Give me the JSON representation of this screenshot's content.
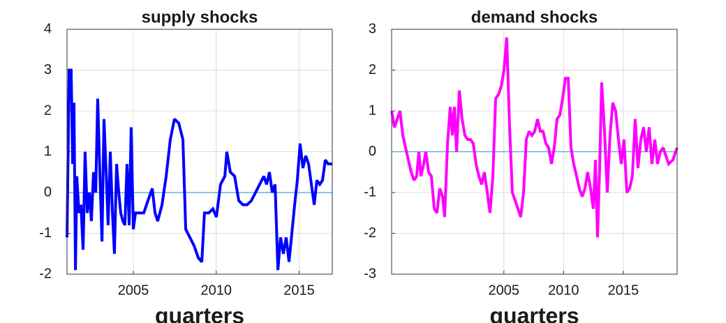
{
  "chart_data": [
    {
      "type": "line",
      "title": "supply shocks",
      "x_label": "quarters",
      "xlim": [
        2001,
        2017
      ],
      "xticks": [
        2005,
        2010,
        2015
      ],
      "ylim": [
        -2,
        4
      ],
      "yticks": [
        -2,
        -1,
        0,
        1,
        2,
        3,
        4
      ],
      "grid": true,
      "hline": 0,
      "hline_color": "#4aa3d8",
      "series": [
        {
          "name": "supply shocks",
          "color": "#0000ff",
          "x": [
            2001.0,
            2001.13,
            2001.25,
            2001.34,
            2001.42,
            2001.51,
            2001.59,
            2001.72,
            2001.84,
            2001.97,
            2002.09,
            2002.22,
            2002.35,
            2002.47,
            2002.6,
            2002.73,
            2002.85,
            2002.98,
            2003.11,
            2003.23,
            2003.36,
            2003.48,
            2003.61,
            2003.74,
            2003.86,
            2003.99,
            2004.12,
            2004.24,
            2004.37,
            2004.49,
            2004.62,
            2004.75,
            2004.87,
            2005.0,
            2005.13,
            2005.38,
            2005.63,
            2005.88,
            2006.14,
            2006.31,
            2006.47,
            2006.73,
            2006.98,
            2007.23,
            2007.48,
            2007.74,
            2007.99,
            2008.16,
            2008.41,
            2008.66,
            2008.92,
            2009.13,
            2009.29,
            2009.55,
            2009.8,
            2010.01,
            2010.26,
            2010.52,
            2010.64,
            2010.85,
            2011.11,
            2011.36,
            2011.61,
            2011.86,
            2012.12,
            2012.37,
            2012.62,
            2012.87,
            2013.04,
            2013.21,
            2013.38,
            2013.55,
            2013.72,
            2013.88,
            2014.05,
            2014.22,
            2014.39,
            2014.56,
            2014.73,
            2014.89,
            2015.06,
            2015.23,
            2015.4,
            2015.57,
            2015.74,
            2015.91,
            2016.07,
            2016.24,
            2016.41,
            2016.58,
            2016.75,
            2017.0
          ],
          "values": [
            -1.1,
            3.0,
            3.0,
            0.7,
            2.2,
            -1.9,
            0.4,
            -0.5,
            -0.3,
            -1.4,
            1.0,
            -0.5,
            0.0,
            -0.7,
            0.5,
            0.0,
            2.3,
            0.5,
            -1.2,
            1.8,
            0.5,
            -0.8,
            1.0,
            -0.5,
            -1.5,
            0.7,
            0.0,
            -0.5,
            -0.7,
            -0.8,
            0.7,
            -0.8,
            1.6,
            -0.9,
            -0.5,
            -0.5,
            -0.5,
            -0.2,
            0.1,
            -0.5,
            -0.7,
            -0.3,
            0.4,
            1.3,
            1.8,
            1.7,
            1.3,
            -0.9,
            -1.1,
            -1.3,
            -1.6,
            -1.7,
            -0.5,
            -0.5,
            -0.4,
            -0.6,
            0.2,
            0.4,
            1.0,
            0.5,
            0.4,
            -0.2,
            -0.3,
            -0.3,
            -0.2,
            0.0,
            0.2,
            0.4,
            0.2,
            0.5,
            0.0,
            0.2,
            -1.9,
            -1.1,
            -1.5,
            -1.1,
            -1.7,
            -1.0,
            -0.3,
            0.3,
            1.2,
            0.6,
            0.9,
            0.7,
            0.2,
            -0.3,
            0.3,
            0.2,
            0.3,
            0.8,
            0.7,
            0.7
          ]
        }
      ]
    },
    {
      "type": "line",
      "title": "demand shocks",
      "x_label": "quarters",
      "xlim": [
        1995.6,
        2019.51
      ],
      "xticks": [
        2005,
        2010,
        2015
      ],
      "ylim": [
        -3,
        3
      ],
      "yticks": [
        -3,
        -2,
        -1,
        0,
        1,
        2,
        3
      ],
      "grid": true,
      "hline": 0,
      "hline_color": "#4aa3d8",
      "series": [
        {
          "name": "demand shocks",
          "color": "#ff00ff",
          "x": [
            1995.6,
            1995.83,
            1996.07,
            1996.3,
            1996.54,
            1996.77,
            1997.0,
            1997.24,
            1997.47,
            1997.7,
            1997.88,
            1998.05,
            1998.29,
            1998.46,
            1998.7,
            1998.93,
            1999.17,
            1999.4,
            1999.63,
            1999.87,
            2000.04,
            2000.28,
            2000.51,
            2000.69,
            2000.86,
            2001.04,
            2001.27,
            2001.5,
            2001.74,
            2001.97,
            2002.2,
            2002.44,
            2002.67,
            2002.91,
            2003.14,
            2003.37,
            2003.61,
            2003.84,
            2004.08,
            2004.31,
            2004.54,
            2004.78,
            2005.01,
            2005.24,
            2005.48,
            2005.71,
            2005.95,
            2006.18,
            2006.41,
            2006.65,
            2006.88,
            2007.11,
            2007.35,
            2007.58,
            2007.82,
            2008.05,
            2008.28,
            2008.52,
            2008.75,
            2008.99,
            2009.22,
            2009.45,
            2009.69,
            2009.92,
            2010.15,
            2010.39,
            2010.62,
            2010.85,
            2011.09,
            2011.32,
            2011.56,
            2011.79,
            2012.02,
            2012.26,
            2012.49,
            2012.67,
            2012.84,
            2013.02,
            2013.19,
            2013.43,
            2013.66,
            2013.89,
            2014.12,
            2014.36,
            2014.6,
            2014.83,
            2015.06,
            2015.3,
            2015.53,
            2015.76,
            2016.0,
            2016.23,
            2016.47,
            2016.7,
            2016.93,
            2017.17,
            2017.4,
            2017.64,
            2017.87,
            2018.1,
            2018.34,
            2018.8,
            2019.16,
            2019.51
          ],
          "values": [
            1.0,
            0.6,
            0.8,
            1.0,
            0.4,
            0.1,
            -0.2,
            -0.5,
            -0.7,
            -0.6,
            0.0,
            -0.6,
            -0.3,
            0.0,
            -0.5,
            -0.6,
            -1.4,
            -1.5,
            -0.9,
            -1.1,
            -1.6,
            0.2,
            1.1,
            0.4,
            1.1,
            0.0,
            1.5,
            0.8,
            0.4,
            0.3,
            0.3,
            0.2,
            -0.3,
            -0.6,
            -0.8,
            -0.5,
            -1.0,
            -1.5,
            -0.6,
            1.3,
            1.4,
            1.6,
            2.0,
            2.8,
            0.6,
            -1.0,
            -1.2,
            -1.4,
            -1.6,
            -1.0,
            0.3,
            0.5,
            0.4,
            0.5,
            0.8,
            0.5,
            0.5,
            0.2,
            0.1,
            -0.3,
            0.1,
            0.8,
            0.9,
            1.3,
            1.8,
            1.8,
            0.1,
            -0.3,
            -0.6,
            -0.9,
            -1.1,
            -0.9,
            -0.5,
            -0.9,
            -1.4,
            -0.2,
            -2.1,
            -0.4,
            1.7,
            0.5,
            -1.0,
            0.4,
            1.2,
            1.0,
            0.3,
            -0.3,
            0.3,
            -1.0,
            -0.9,
            -0.6,
            0.8,
            -0.4,
            0.3,
            0.6,
            0.0,
            0.6,
            -0.3,
            0.3,
            -0.3,
            0.0,
            0.1,
            -0.3,
            -0.2,
            0.1
          ]
        }
      ]
    }
  ]
}
